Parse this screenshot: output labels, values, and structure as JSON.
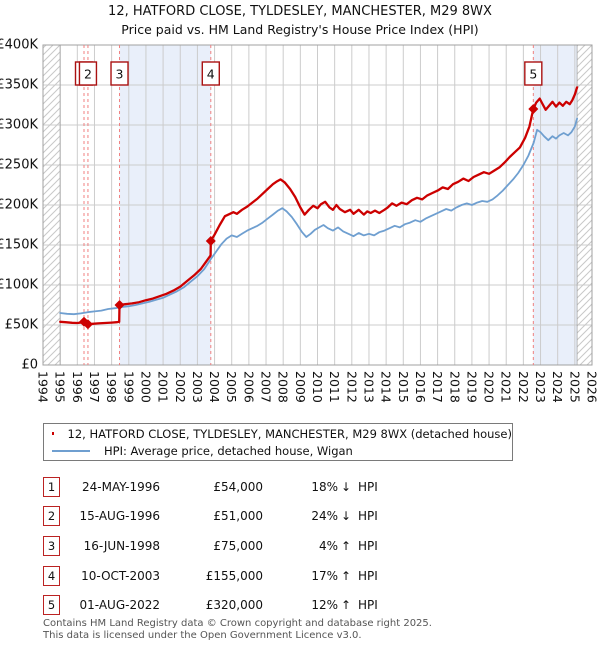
{
  "header": {
    "title": "12, HATFORD CLOSE, TYLDESLEY, MANCHESTER, M29 8WX",
    "subtitle": "Price paid vs. HM Land Registry's House Price Index (HPI)"
  },
  "chart_data": {
    "type": "line",
    "x_axis": {
      "tick_years": [
        1994,
        1995,
        1996,
        1997,
        1998,
        1999,
        2000,
        2001,
        2002,
        2003,
        2004,
        2005,
        2006,
        2007,
        2008,
        2009,
        2010,
        2011,
        2012,
        2013,
        2014,
        2015,
        2016,
        2017,
        2018,
        2019,
        2020,
        2021,
        2022,
        2023,
        2024,
        2025,
        2026
      ],
      "range": [
        1994,
        2026
      ]
    },
    "y_axis": {
      "tick_labels": [
        "£0",
        "£50K",
        "£100K",
        "£150K",
        "£200K",
        "£250K",
        "£300K",
        "£350K",
        "£400K"
      ],
      "tick_values_k": [
        0,
        50,
        100,
        150,
        200,
        250,
        300,
        350,
        400
      ],
      "range_k": [
        0,
        400
      ]
    },
    "grid": true,
    "no_data_hatch_years": [
      [
        1994.0,
        1995.0
      ],
      [
        2025.13,
        2026.0
      ]
    ],
    "ownership_band_years": [
      [
        1998.46,
        2003.78
      ],
      [
        2022.58,
        2025.13
      ]
    ],
    "colors": {
      "property_line": "#cc0000",
      "hpi_line": "#6f9fd0",
      "sale_marker": "#cc0000",
      "sale_dashed_line": "#f08080",
      "badge_border": "#aa1111",
      "band_fill": "#e9effa",
      "grid_line": "#cccccc",
      "plot_border": "#a0a0a0",
      "hatch_line": "#c8c8c8"
    },
    "sales": [
      {
        "badge": "1",
        "year": 1996.39,
        "price_k": 54
      },
      {
        "badge": "2",
        "year": 1996.62,
        "price_k": 51
      },
      {
        "badge": "3",
        "year": 1998.46,
        "price_k": 75
      },
      {
        "badge": "4",
        "year": 2003.78,
        "price_k": 155
      },
      {
        "badge": "5",
        "year": 2022.58,
        "price_k": 320
      }
    ],
    "series": [
      {
        "name": "12, HATFORD CLOSE, TYLDESLEY, MANCHESTER, M29 8WX (detached house)",
        "color": "#cc0000",
        "width": 2.3,
        "points_year_gbp_k": [
          [
            1995.0,
            54
          ],
          [
            1995.3,
            53.5
          ],
          [
            1995.7,
            52.8
          ],
          [
            1996.0,
            52.5
          ],
          [
            1996.2,
            53
          ],
          [
            1996.39,
            54
          ],
          [
            1996.5,
            52
          ],
          [
            1996.62,
            51
          ],
          [
            1996.9,
            51.5
          ],
          [
            1997.2,
            52
          ],
          [
            1997.6,
            52.5
          ],
          [
            1998.0,
            53
          ],
          [
            1998.3,
            53.5
          ],
          [
            1998.44,
            54
          ],
          [
            1998.46,
            75
          ],
          [
            1998.8,
            76
          ],
          [
            1999.2,
            77
          ],
          [
            1999.6,
            78.5
          ],
          [
            2000.0,
            81
          ],
          [
            2000.4,
            83
          ],
          [
            2000.8,
            86
          ],
          [
            2001.2,
            89
          ],
          [
            2001.6,
            93
          ],
          [
            2002.0,
            98
          ],
          [
            2002.4,
            105
          ],
          [
            2002.8,
            112
          ],
          [
            2003.2,
            120
          ],
          [
            2003.5,
            129
          ],
          [
            2003.77,
            137
          ],
          [
            2003.78,
            155
          ],
          [
            2004.0,
            163
          ],
          [
            2004.3,
            175
          ],
          [
            2004.6,
            186
          ],
          [
            2004.9,
            189
          ],
          [
            2005.1,
            191
          ],
          [
            2005.3,
            189
          ],
          [
            2005.6,
            194
          ],
          [
            2005.9,
            198
          ],
          [
            2006.2,
            203
          ],
          [
            2006.5,
            208
          ],
          [
            2006.8,
            214
          ],
          [
            2007.1,
            220
          ],
          [
            2007.4,
            226
          ],
          [
            2007.6,
            229
          ],
          [
            2007.85,
            232
          ],
          [
            2008.1,
            228
          ],
          [
            2008.4,
            220
          ],
          [
            2008.7,
            210
          ],
          [
            2009.0,
            197
          ],
          [
            2009.25,
            188
          ],
          [
            2009.5,
            194
          ],
          [
            2009.75,
            199
          ],
          [
            2010.0,
            196
          ],
          [
            2010.2,
            201
          ],
          [
            2010.45,
            204
          ],
          [
            2010.7,
            197
          ],
          [
            2010.9,
            194
          ],
          [
            2011.1,
            200
          ],
          [
            2011.3,
            195
          ],
          [
            2011.6,
            191
          ],
          [
            2011.9,
            194
          ],
          [
            2012.1,
            189
          ],
          [
            2012.4,
            194
          ],
          [
            2012.7,
            188
          ],
          [
            2012.9,
            192
          ],
          [
            2013.1,
            190
          ],
          [
            2013.35,
            193
          ],
          [
            2013.6,
            190
          ],
          [
            2013.9,
            194
          ],
          [
            2014.1,
            197
          ],
          [
            2014.35,
            202
          ],
          [
            2014.6,
            199
          ],
          [
            2014.9,
            203
          ],
          [
            2015.2,
            201
          ],
          [
            2015.5,
            206
          ],
          [
            2015.8,
            209
          ],
          [
            2016.1,
            207
          ],
          [
            2016.4,
            212
          ],
          [
            2016.7,
            215
          ],
          [
            2017.0,
            218
          ],
          [
            2017.3,
            222
          ],
          [
            2017.6,
            220
          ],
          [
            2017.9,
            226
          ],
          [
            2018.2,
            229
          ],
          [
            2018.5,
            233
          ],
          [
            2018.8,
            230
          ],
          [
            2019.1,
            235
          ],
          [
            2019.4,
            238
          ],
          [
            2019.7,
            241
          ],
          [
            2020.0,
            239
          ],
          [
            2020.3,
            243
          ],
          [
            2020.6,
            247
          ],
          [
            2020.9,
            253
          ],
          [
            2021.2,
            260
          ],
          [
            2021.5,
            266
          ],
          [
            2021.8,
            272
          ],
          [
            2022.1,
            284
          ],
          [
            2022.35,
            298
          ],
          [
            2022.58,
            320
          ],
          [
            2022.75,
            328
          ],
          [
            2022.95,
            333
          ],
          [
            2023.1,
            327
          ],
          [
            2023.3,
            319
          ],
          [
            2023.5,
            324
          ],
          [
            2023.7,
            329
          ],
          [
            2023.9,
            323
          ],
          [
            2024.1,
            328
          ],
          [
            2024.3,
            324
          ],
          [
            2024.5,
            329
          ],
          [
            2024.7,
            326
          ],
          [
            2024.85,
            331
          ],
          [
            2025.0,
            338
          ],
          [
            2025.13,
            347
          ]
        ]
      },
      {
        "name": "HPI: Average price, detached house, Wigan",
        "color": "#6f9fd0",
        "width": 1.8,
        "points_year_gbp_k": [
          [
            1995.0,
            65
          ],
          [
            1995.4,
            64
          ],
          [
            1995.8,
            63.5
          ],
          [
            1996.2,
            64.5
          ],
          [
            1996.6,
            66
          ],
          [
            1997.0,
            67
          ],
          [
            1997.4,
            68
          ],
          [
            1997.8,
            70
          ],
          [
            1998.2,
            71
          ],
          [
            1998.6,
            72.5
          ],
          [
            1999.0,
            73.5
          ],
          [
            1999.4,
            75
          ],
          [
            1999.8,
            77
          ],
          [
            2000.2,
            79
          ],
          [
            2000.6,
            81.5
          ],
          [
            2001.0,
            84
          ],
          [
            2001.4,
            88
          ],
          [
            2001.8,
            92
          ],
          [
            2002.2,
            97
          ],
          [
            2002.6,
            104
          ],
          [
            2003.0,
            111
          ],
          [
            2003.4,
            120
          ],
          [
            2003.8,
            133
          ],
          [
            2004.1,
            142
          ],
          [
            2004.4,
            151
          ],
          [
            2004.7,
            158
          ],
          [
            2005.0,
            162
          ],
          [
            2005.3,
            160
          ],
          [
            2005.6,
            164
          ],
          [
            2005.9,
            168
          ],
          [
            2006.2,
            171
          ],
          [
            2006.5,
            174
          ],
          [
            2006.8,
            178
          ],
          [
            2007.1,
            183
          ],
          [
            2007.4,
            188
          ],
          [
            2007.7,
            193
          ],
          [
            2007.95,
            196
          ],
          [
            2008.2,
            192
          ],
          [
            2008.5,
            185
          ],
          [
            2008.8,
            176
          ],
          [
            2009.1,
            166
          ],
          [
            2009.35,
            160
          ],
          [
            2009.6,
            164
          ],
          [
            2009.85,
            169
          ],
          [
            2010.1,
            172
          ],
          [
            2010.35,
            175
          ],
          [
            2010.6,
            171
          ],
          [
            2010.9,
            168
          ],
          [
            2011.2,
            172
          ],
          [
            2011.5,
            167
          ],
          [
            2011.8,
            164
          ],
          [
            2012.1,
            161
          ],
          [
            2012.4,
            165
          ],
          [
            2012.7,
            162
          ],
          [
            2013.0,
            164
          ],
          [
            2013.3,
            162
          ],
          [
            2013.6,
            166
          ],
          [
            2013.9,
            168
          ],
          [
            2014.2,
            171
          ],
          [
            2014.5,
            174
          ],
          [
            2014.8,
            172
          ],
          [
            2015.1,
            176
          ],
          [
            2015.4,
            178
          ],
          [
            2015.7,
            181
          ],
          [
            2016.0,
            179
          ],
          [
            2016.3,
            183
          ],
          [
            2016.6,
            186
          ],
          [
            2016.9,
            189
          ],
          [
            2017.2,
            192
          ],
          [
            2017.5,
            195
          ],
          [
            2017.8,
            193
          ],
          [
            2018.1,
            197
          ],
          [
            2018.4,
            200
          ],
          [
            2018.7,
            202
          ],
          [
            2019.0,
            200
          ],
          [
            2019.3,
            203
          ],
          [
            2019.6,
            205
          ],
          [
            2019.9,
            204
          ],
          [
            2020.2,
            207
          ],
          [
            2020.5,
            212
          ],
          [
            2020.8,
            218
          ],
          [
            2021.1,
            225
          ],
          [
            2021.4,
            232
          ],
          [
            2021.7,
            240
          ],
          [
            2022.0,
            250
          ],
          [
            2022.3,
            262
          ],
          [
            2022.6,
            278
          ],
          [
            2022.8,
            294
          ],
          [
            2023.0,
            291
          ],
          [
            2023.2,
            286
          ],
          [
            2023.45,
            281
          ],
          [
            2023.7,
            286
          ],
          [
            2023.9,
            283
          ],
          [
            2024.1,
            287
          ],
          [
            2024.35,
            290
          ],
          [
            2024.6,
            287
          ],
          [
            2024.8,
            291
          ],
          [
            2025.0,
            298
          ],
          [
            2025.13,
            308
          ]
        ]
      }
    ]
  },
  "legend": {
    "items": [
      {
        "label": "12, HATFORD CLOSE, TYLDESLEY, MANCHESTER, M29 8WX (detached house)",
        "color": "#cc0000",
        "thickness": 3
      },
      {
        "label": "HPI: Average price, detached house, Wigan",
        "color": "#6f9fd0",
        "thickness": 2.5
      }
    ]
  },
  "transactions": {
    "rows": [
      {
        "num": "1",
        "date": "24-MAY-1996",
        "price": "£54,000",
        "pct": "18%",
        "dir": "↓",
        "ref": "HPI"
      },
      {
        "num": "2",
        "date": "15-AUG-1996",
        "price": "£51,000",
        "pct": "24%",
        "dir": "↓",
        "ref": "HPI"
      },
      {
        "num": "3",
        "date": "16-JUN-1998",
        "price": "£75,000",
        "pct": "4%",
        "dir": "↑",
        "ref": "HPI"
      },
      {
        "num": "4",
        "date": "10-OCT-2003",
        "price": "£155,000",
        "pct": "17%",
        "dir": "↑",
        "ref": "HPI"
      },
      {
        "num": "5",
        "date": "01-AUG-2022",
        "price": "£320,000",
        "pct": "12%",
        "dir": "↑",
        "ref": "HPI"
      }
    ]
  },
  "footer": {
    "line1": "Contains HM Land Registry data © Crown copyright and database right 2025.",
    "line2": "This data is licensed under the Open Government Licence v3.0."
  }
}
